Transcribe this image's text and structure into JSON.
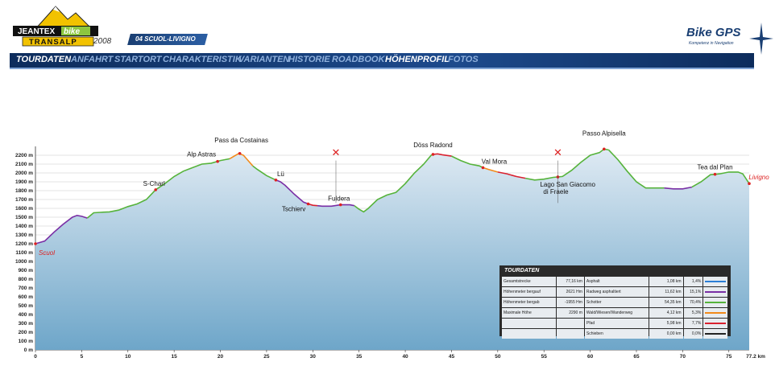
{
  "header": {
    "logo_alt": "JEANTEX bike TRANSALP",
    "year": "2008",
    "stage": "04 SCUOL-LIVIGNO",
    "brand": "Bike GPS",
    "brand_sub": "Kompetenz in Navigation"
  },
  "nav": {
    "items": [
      {
        "label": "TOURDATEN",
        "active": true
      },
      {
        "label": "ANFAHRT",
        "active": false
      },
      {
        "label": "STARTORT",
        "active": false
      },
      {
        "label": "CHARAKTERISTIK",
        "active": false
      },
      {
        "label": "VARIANTEN",
        "active": false
      },
      {
        "label": "HISTORIE",
        "active": false
      },
      {
        "label": "ROADBOOK",
        "active": false
      },
      {
        "label": "HÖHENPROFIL",
        "active": true
      },
      {
        "label": "FOTOS",
        "active": false
      }
    ]
  },
  "colors": {
    "asphalt": "#2b7ed6",
    "radweg": "#7a2fa5",
    "schotter": "#56b33b",
    "wald": "#f28a1a",
    "pfad": "#d9212f",
    "schieben": "#222222",
    "red_label": "#d22222"
  },
  "chart_data": {
    "type": "area",
    "xlabel": "",
    "ylabel": "",
    "x_unit_label": "77.2 km",
    "xlim": [
      0,
      77.2
    ],
    "ylim": [
      0,
      2300
    ],
    "x_ticks": [
      0,
      5,
      10,
      15,
      20,
      25,
      30,
      35,
      40,
      45,
      50,
      55,
      60,
      65,
      70,
      75
    ],
    "y_ticks": [
      {
        "v": 0,
        "label": "0 m"
      },
      {
        "v": 100,
        "label": "100 m"
      },
      {
        "v": 200,
        "label": "200 m"
      },
      {
        "v": 300,
        "label": "300 m"
      },
      {
        "v": 400,
        "label": "400 m"
      },
      {
        "v": 500,
        "label": "500 m"
      },
      {
        "v": 600,
        "label": "600 m"
      },
      {
        "v": 700,
        "label": "700 m"
      },
      {
        "v": 800,
        "label": "800 m"
      },
      {
        "v": 900,
        "label": "900 m"
      },
      {
        "v": 1000,
        "label": "1000 m"
      },
      {
        "v": 1100,
        "label": "1100 m"
      },
      {
        "v": 1200,
        "label": "1200 m"
      },
      {
        "v": 1300,
        "label": "1300 m"
      },
      {
        "v": 1400,
        "label": "1400 m"
      },
      {
        "v": 1500,
        "label": "1500 m"
      },
      {
        "v": 1600,
        "label": "1600 m"
      },
      {
        "v": 1700,
        "label": "1700 m"
      },
      {
        "v": 1800,
        "label": "1800 m"
      },
      {
        "v": 1900,
        "label": "1900 m"
      },
      {
        "v": 2000,
        "label": "2000 m"
      },
      {
        "v": 2100,
        "label": "2100 m"
      },
      {
        "v": 2200,
        "label": "2200 m"
      }
    ],
    "segments": [
      {
        "surface": "radweg",
        "points": [
          [
            0,
            1200
          ],
          [
            1,
            1230
          ],
          [
            2,
            1330
          ],
          [
            3,
            1420
          ],
          [
            4,
            1500
          ],
          [
            4.5,
            1520
          ],
          [
            5,
            1510
          ],
          [
            5.6,
            1490
          ]
        ]
      },
      {
        "surface": "schotter",
        "points": [
          [
            5.6,
            1490
          ],
          [
            6.3,
            1550
          ],
          [
            7,
            1555
          ],
          [
            8,
            1560
          ],
          [
            9,
            1580
          ],
          [
            10,
            1620
          ],
          [
            11,
            1650
          ],
          [
            12,
            1700
          ],
          [
            13,
            1810
          ],
          [
            14,
            1880
          ],
          [
            15,
            1960
          ],
          [
            16,
            2020
          ],
          [
            17,
            2060
          ],
          [
            18,
            2100
          ],
          [
            19,
            2110
          ],
          [
            20,
            2140
          ],
          [
            21,
            2160
          ]
        ]
      },
      {
        "surface": "wald",
        "points": [
          [
            21,
            2160
          ],
          [
            21.5,
            2190
          ],
          [
            22,
            2220
          ],
          [
            22.5,
            2200
          ],
          [
            23,
            2140
          ],
          [
            23.5,
            2080
          ]
        ]
      },
      {
        "surface": "schotter",
        "points": [
          [
            23.5,
            2080
          ],
          [
            24,
            2040
          ],
          [
            25,
            1970
          ],
          [
            26,
            1920
          ]
        ]
      },
      {
        "surface": "radweg",
        "points": [
          [
            26,
            1920
          ],
          [
            26.5,
            1900
          ],
          [
            27,
            1860
          ],
          [
            28,
            1760
          ],
          [
            29,
            1670
          ],
          [
            29.5,
            1650
          ]
        ]
      },
      {
        "surface": "pfad",
        "points": [
          [
            29.5,
            1650
          ],
          [
            30,
            1635
          ],
          [
            30.5,
            1630
          ]
        ]
      },
      {
        "surface": "radweg",
        "points": [
          [
            30.5,
            1630
          ],
          [
            31,
            1625
          ],
          [
            32,
            1625
          ],
          [
            33,
            1640
          ],
          [
            34,
            1640
          ],
          [
            34.5,
            1630
          ]
        ]
      },
      {
        "surface": "schotter",
        "points": [
          [
            34.5,
            1630
          ],
          [
            35,
            1590
          ],
          [
            35.5,
            1560
          ],
          [
            36,
            1600
          ],
          [
            37,
            1700
          ],
          [
            38,
            1750
          ],
          [
            39,
            1780
          ],
          [
            40,
            1880
          ],
          [
            41,
            2000
          ],
          [
            42,
            2100
          ],
          [
            42.8,
            2200
          ],
          [
            43,
            2210
          ]
        ]
      },
      {
        "surface": "pfad",
        "points": [
          [
            43,
            2210
          ],
          [
            43.5,
            2215
          ],
          [
            44,
            2205
          ],
          [
            45,
            2190
          ]
        ]
      },
      {
        "surface": "schotter",
        "points": [
          [
            45,
            2190
          ],
          [
            46,
            2140
          ],
          [
            47,
            2100
          ],
          [
            48,
            2080
          ],
          [
            48.4,
            2060
          ]
        ]
      },
      {
        "surface": "wald",
        "points": [
          [
            48.4,
            2060
          ],
          [
            49,
            2040
          ],
          [
            50,
            2010
          ]
        ]
      },
      {
        "surface": "pfad",
        "points": [
          [
            50,
            2010
          ],
          [
            51,
            1990
          ],
          [
            52,
            1960
          ],
          [
            53,
            1940
          ]
        ]
      },
      {
        "surface": "schotter",
        "points": [
          [
            53,
            1940
          ],
          [
            54,
            1920
          ],
          [
            55,
            1930
          ],
          [
            56,
            1950
          ],
          [
            57,
            1960
          ],
          [
            58,
            2030
          ],
          [
            59,
            2120
          ],
          [
            60,
            2200
          ],
          [
            61,
            2230
          ],
          [
            61.5,
            2270
          ],
          [
            62,
            2260
          ]
        ]
      },
      {
        "surface": "schotter",
        "points": [
          [
            62,
            2260
          ],
          [
            63,
            2150
          ],
          [
            64,
            2020
          ],
          [
            65,
            1900
          ],
          [
            66,
            1830
          ],
          [
            67,
            1830
          ],
          [
            68,
            1830
          ]
        ]
      },
      {
        "surface": "radweg",
        "points": [
          [
            68,
            1830
          ],
          [
            69,
            1820
          ],
          [
            70,
            1820
          ],
          [
            71,
            1840
          ]
        ]
      },
      {
        "surface": "schotter",
        "points": [
          [
            71,
            1840
          ],
          [
            72,
            1900
          ],
          [
            73,
            1980
          ],
          [
            74,
            1990
          ],
          [
            75,
            2010
          ],
          [
            76,
            2010
          ],
          [
            76.5,
            1990
          ],
          [
            77.2,
            1880
          ]
        ]
      }
    ],
    "places": [
      {
        "name": "Scuol",
        "km": 0,
        "h": 1200,
        "red": true
      },
      {
        "name": "S-Charl",
        "km": 13,
        "h": 1810,
        "red": false
      },
      {
        "name": "Alp Astras",
        "km": 19.7,
        "h": 2130,
        "red": false
      },
      {
        "name": "Pass da Costainas",
        "km": 22.1,
        "h": 2220,
        "red": false
      },
      {
        "name": "Lü",
        "km": 26,
        "h": 1920,
        "red": false
      },
      {
        "name": "Tschierv",
        "km": 29.5,
        "h": 1650,
        "red": false
      },
      {
        "name": "Fuldera",
        "km": 33,
        "h": 1640,
        "red": false
      },
      {
        "name": "Döss Radond",
        "km": 43,
        "h": 2210,
        "red": false
      },
      {
        "name": "Val Mora",
        "km": 48.4,
        "h": 2060,
        "red": false
      },
      {
        "name": "Lago San Giacomo",
        "km": 56.5,
        "h": 1955,
        "red": false
      },
      {
        "name": "di Fraele",
        "km": 56.5,
        "h": 1955,
        "red": false
      },
      {
        "name": "Passo Alpisella",
        "km": 61.5,
        "h": 2270,
        "red": false
      },
      {
        "name": "Tea dal Plan",
        "km": 73.5,
        "h": 1985,
        "red": false
      },
      {
        "name": "Livigno",
        "km": 77.2,
        "h": 1880,
        "red": true
      }
    ],
    "markers": [
      {
        "symbol": "✕",
        "km": 32.5
      },
      {
        "symbol": "✕",
        "km": 56.5
      }
    ]
  },
  "tourdaten": {
    "title": "TOURDATEN",
    "rows": [
      {
        "k": "Gesamtstrecke",
        "v": "77,16 km",
        "type": "Asphalt",
        "len": "1,08 km",
        "pct": "1,4%",
        "color": "asphalt"
      },
      {
        "k": "Höhenmeter bergauf",
        "v": "2621 Hm",
        "type": "Radweg asphaltiert",
        "len": "11,62 km",
        "pct": "15,1%",
        "color": "radweg"
      },
      {
        "k": "Höhenmeter bergab",
        "v": "-1955 Hm",
        "type": "Schotter",
        "len": "54,35 km",
        "pct": "70,4%",
        "color": "schotter"
      },
      {
        "k": "Maximale Höhe",
        "v": "2290 m",
        "type": "Wald/Wiesen/Wanderweg",
        "len": "4,12 km",
        "pct": "5,3%",
        "color": "wald"
      },
      {
        "k": "",
        "v": "",
        "type": "Pfad",
        "len": "5,98 km",
        "pct": "7,7%",
        "color": "pfad"
      },
      {
        "k": "",
        "v": "",
        "type": "Schieben",
        "len": "0,00 km",
        "pct": "0,0%",
        "color": "schieben"
      }
    ]
  }
}
